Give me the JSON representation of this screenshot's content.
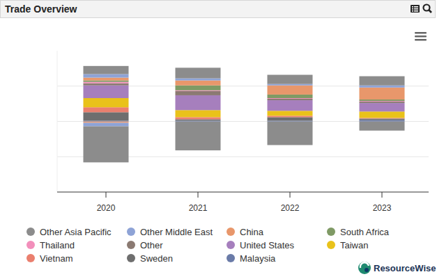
{
  "chart_data": {
    "type": "bar",
    "title": "Trade Overview",
    "categories": [
      "2020",
      "2021",
      "2022",
      "2023"
    ],
    "stacked": true,
    "grid": true,
    "legend": "bottom",
    "tick_labels": "x",
    "ylim": [
      -2,
      2
    ],
    "yticks": [
      -1,
      0,
      1
    ],
    "series": [
      {
        "name": "Other Asia Pacific",
        "color": "#8c8c8c",
        "values": [
          0.23,
          0.3,
          0.26,
          0.26
        ]
      },
      {
        "name": "Other Middle East",
        "color": "#8ea3d6",
        "values": [
          0.1,
          0.06,
          0.04,
          0.06
        ]
      },
      {
        "name": "China",
        "color": "#e8976b",
        "values": [
          0.08,
          0.14,
          0.26,
          0.34
        ]
      },
      {
        "name": "South Africa",
        "color": "#7f9a65",
        "values": [
          0.04,
          0.14,
          0.1,
          0.04
        ]
      },
      {
        "name": "Thailand",
        "color": "#f28fbb",
        "values": [
          0.04,
          0.02,
          0.02,
          0.02
        ]
      },
      {
        "name": "Other",
        "color": "#8b7a72",
        "values": [
          0.06,
          0.12,
          0.04,
          0.04
        ]
      },
      {
        "name": "United States",
        "color": "#a67fbd",
        "values": [
          0.36,
          0.42,
          0.3,
          0.24
        ]
      },
      {
        "name": "Taiwan",
        "color": "#e9c21a",
        "values": [
          0.26,
          0.2,
          0.14,
          0.18
        ]
      },
      {
        "name": "Vietnam",
        "color": "#ea7f6e",
        "values": [
          0.14,
          0.06,
          0.04,
          0.02
        ]
      },
      {
        "name": "Sweden",
        "color": "#6e6e6e",
        "values": [
          0.24,
          0.04,
          0.1,
          0.04
        ]
      },
      {
        "name": "Malaysia",
        "color": "#6a7ba8",
        "values": [
          0.02,
          0.02,
          0.02,
          0.04
        ]
      },
      {
        "name": "Other Asia Pacific",
        "color": "#8c8c8c",
        "values": [
          -1.02,
          -0.82,
          -0.67,
          -0.26
        ]
      },
      {
        "name": "Other Middle East",
        "color": "#8ea3d6",
        "values": [
          -0.1,
          0,
          0,
          0
        ]
      },
      {
        "name": "China",
        "color": "#e8976b",
        "values": [
          -0.04,
          0,
          0,
          0
        ]
      }
    ]
  },
  "footer": {
    "brand": "ResourceWise"
  }
}
